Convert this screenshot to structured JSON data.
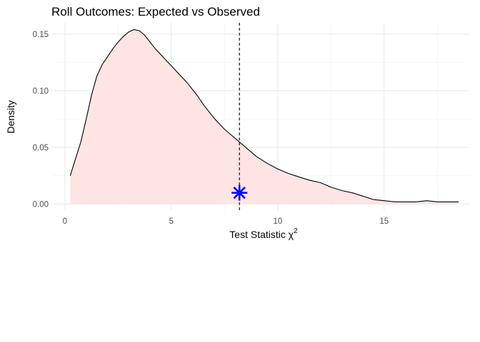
{
  "chart_data": {
    "type": "area",
    "title": "Roll Outcomes: Expected vs Observed",
    "xlabel": "Test Statistic χ",
    "xlabel_superscript": "2",
    "ylabel": "Density",
    "xlim": [
      -0.6,
      19.0
    ],
    "ylim": [
      -0.006,
      0.16
    ],
    "x_ticks": [
      0,
      5,
      10,
      15
    ],
    "y_ticks": [
      0.0,
      0.05,
      0.1,
      0.15
    ],
    "x_tick_labels": [
      "0",
      "5",
      "10",
      "15"
    ],
    "y_tick_labels": [
      "0.00",
      "0.05",
      "0.10",
      "0.15"
    ],
    "grid": true,
    "series": [
      {
        "x": [
          0.25,
          0.5,
          0.75,
          1.0,
          1.25,
          1.5,
          1.75,
          2.0,
          2.25,
          2.5,
          2.75,
          3.0,
          3.25,
          3.5,
          3.75,
          4.0,
          4.25,
          4.5,
          4.75,
          5.0,
          5.25,
          5.5,
          5.75,
          6.0,
          6.25,
          6.5,
          6.75,
          7.0,
          7.25,
          7.5,
          7.75,
          8.0,
          8.25,
          8.5,
          8.75,
          9.0,
          9.5,
          10.0,
          10.5,
          11.0,
          11.5,
          12.0,
          12.5,
          13.0,
          13.5,
          14.0,
          14.5,
          15.0,
          15.5,
          16.0,
          16.5,
          17.0,
          17.5,
          18.0,
          18.5
        ],
        "y": [
          0.025,
          0.04,
          0.055,
          0.075,
          0.096,
          0.113,
          0.123,
          0.13,
          0.137,
          0.143,
          0.148,
          0.152,
          0.154,
          0.153,
          0.149,
          0.143,
          0.137,
          0.132,
          0.127,
          0.122,
          0.117,
          0.112,
          0.107,
          0.101,
          0.095,
          0.088,
          0.082,
          0.076,
          0.071,
          0.066,
          0.062,
          0.058,
          0.054,
          0.05,
          0.046,
          0.042,
          0.036,
          0.031,
          0.027,
          0.024,
          0.021,
          0.019,
          0.015,
          0.012,
          0.01,
          0.007,
          0.004,
          0.003,
          0.002,
          0.002,
          0.002,
          0.003,
          0.002,
          0.002,
          0.002
        ]
      }
    ],
    "fill_color": "#ffe4e4",
    "line_color": "#000000",
    "reference_line": {
      "x": 8.2,
      "style": "dashed",
      "color": "#000000"
    },
    "observed_point": {
      "x": 8.2,
      "y": 0.01,
      "marker": "asterisk",
      "color": "#0000ff"
    }
  }
}
